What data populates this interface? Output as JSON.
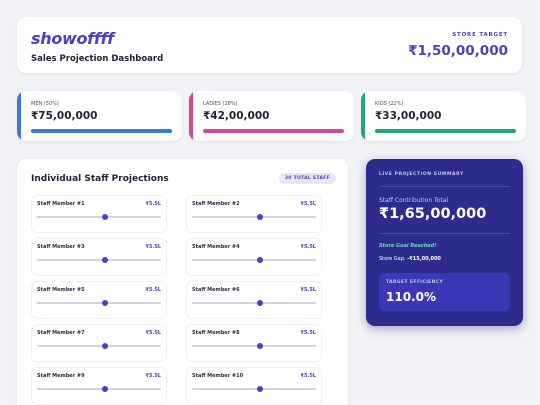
{
  "header": {
    "brand": "showoffff",
    "subtitle": "Sales Projection Dashboard",
    "target_label": "STORE TARGET",
    "target_value": "₹1,50,00,000"
  },
  "categories": [
    {
      "label": "MEN (50%)",
      "value": "₹75,00,000",
      "fill_fraction": 1.0,
      "color": "#3a7bd5"
    },
    {
      "label": "LADIES (28%)",
      "value": "₹42,00,000",
      "fill_fraction": 1.0,
      "color": "#d6459c"
    },
    {
      "label": "KIDS (22%)",
      "value": "₹33,00,000",
      "fill_fraction": 1.0,
      "color": "#1fa67a"
    }
  ],
  "staff": {
    "title": "Individual Staff Projections",
    "badge": "30 TOTAL STAFF",
    "members": [
      {
        "name": "Staff Member #1",
        "value": "₹5.5L",
        "slider": 0.55
      },
      {
        "name": "Staff Member #2",
        "value": "₹5.5L",
        "slider": 0.55
      },
      {
        "name": "Staff Member #3",
        "value": "₹5.5L",
        "slider": 0.55
      },
      {
        "name": "Staff Member #4",
        "value": "₹5.5L",
        "slider": 0.55
      },
      {
        "name": "Staff Member #5",
        "value": "₹5.5L",
        "slider": 0.55
      },
      {
        "name": "Staff Member #6",
        "value": "₹5.5L",
        "slider": 0.55
      },
      {
        "name": "Staff Member #7",
        "value": "₹5.5L",
        "slider": 0.55
      },
      {
        "name": "Staff Member #8",
        "value": "₹5.5L",
        "slider": 0.55
      },
      {
        "name": "Staff Member #9",
        "value": "₹5.5L",
        "slider": 0.55
      },
      {
        "name": "Staff Member #10",
        "value": "₹5.5L",
        "slider": 0.55
      }
    ]
  },
  "summary": {
    "heading": "LIVE PROJECTION SUMMARY",
    "total_label": "Staff Contribution Total",
    "total_value": "₹1,65,00,000",
    "reached": "Store Goal Reached!",
    "gap_label": "Store Gap: ",
    "gap_value": "-₹15,00,000",
    "efficiency_label": "TARGET EFFICIENCY",
    "efficiency_value": "110.0%"
  }
}
